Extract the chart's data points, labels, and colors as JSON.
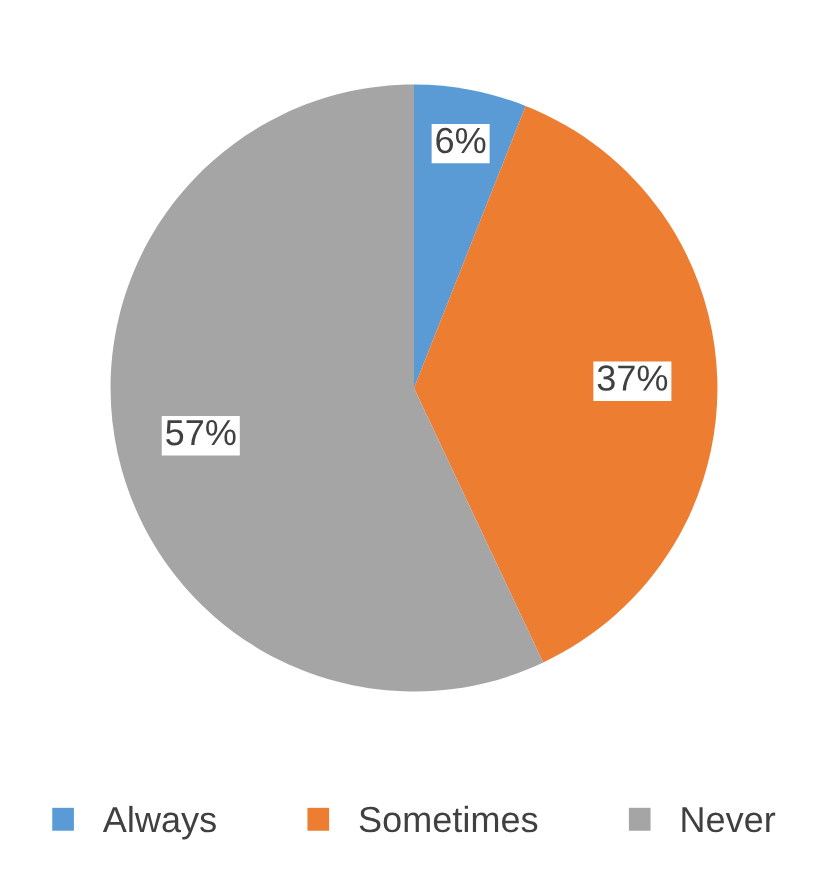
{
  "chart_data": {
    "type": "pie",
    "categories": [
      "Always",
      "Sometimes",
      "Never"
    ],
    "values": [
      6,
      37,
      57
    ],
    "colors": [
      "#5b9bd5",
      "#ed7d31",
      "#a5a5a5"
    ],
    "value_labels": [
      "6%",
      "37%",
      "57%"
    ],
    "legend": "bottom"
  }
}
